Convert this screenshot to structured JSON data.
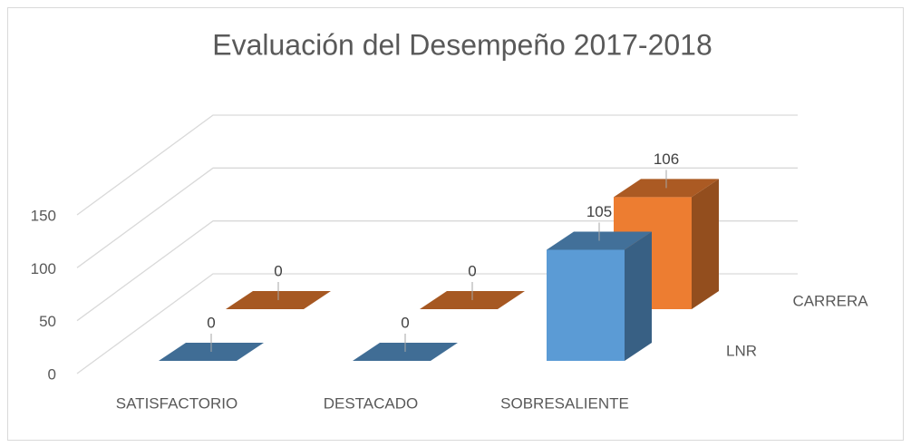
{
  "chart_data": {
    "type": "bar3d",
    "title": "Evaluación del Desempeño 2017-2018",
    "categories": [
      "SATISFACTORIO",
      "DESTACADO",
      "SOBRESALIENTE"
    ],
    "series": [
      {
        "name": "LNR",
        "color": "#5b9bd5",
        "values": [
          0,
          0,
          105
        ]
      },
      {
        "name": "CARRERA",
        "color": "#ed7d31",
        "values": [
          0,
          0,
          106
        ]
      }
    ],
    "ylim": [
      0,
      150
    ],
    "yticks": [
      0,
      50,
      100,
      150
    ],
    "grid": true
  }
}
